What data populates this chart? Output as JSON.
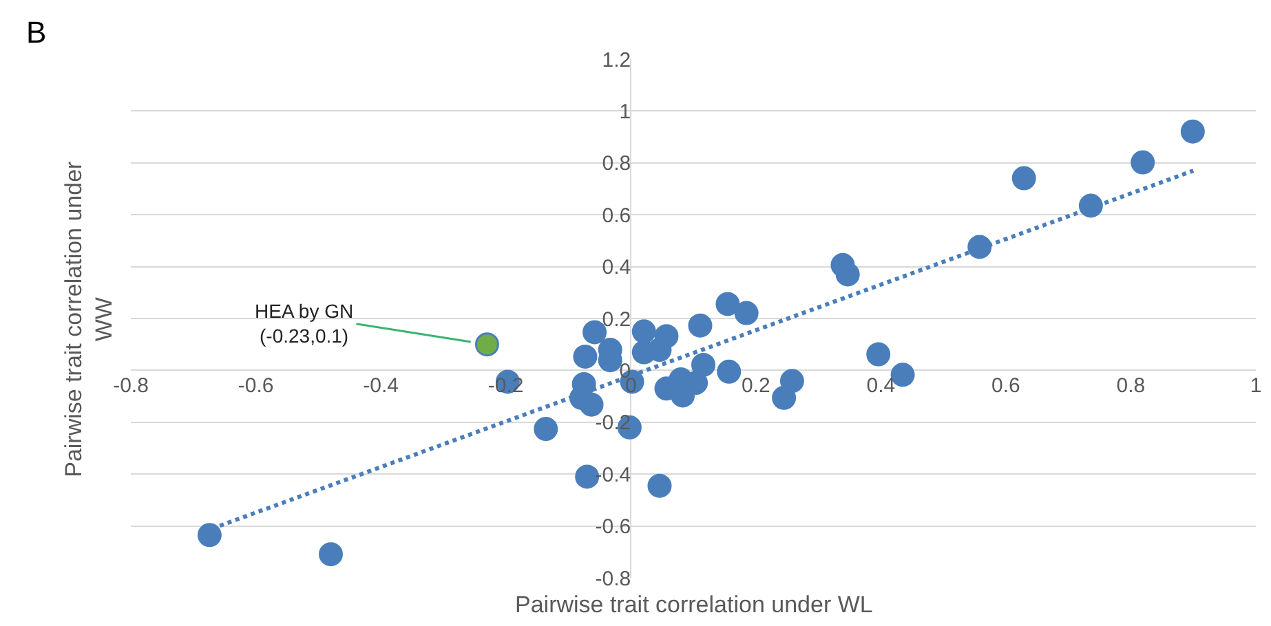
{
  "chart_data": {
    "type": "scatter",
    "xlabel": "Pairwise trait correlation under WL",
    "ylabel": "Pairwise trait correlation under WW",
    "xlim": [
      -0.8,
      1
    ],
    "ylim": [
      -0.8,
      1.2
    ],
    "xticks": [
      -0.8,
      -0.6,
      -0.4,
      -0.2,
      0,
      0.2,
      0.4,
      0.6,
      0.8,
      1
    ],
    "yticks": [
      -0.8,
      -0.6,
      -0.4,
      -0.2,
      0,
      0.2,
      0.4,
      0.6,
      0.8,
      1,
      1.2
    ],
    "grid": "y",
    "marker": "circle",
    "annotations": [
      "B",
      {
        "text": "HEA by GN\n(-0.23,0.1)",
        "x": -0.23,
        "y": 0.1
      }
    ],
    "series": [
      {
        "color": "#4a7ebb",
        "x": [
          -0.197,
          -0.058,
          -0.073,
          -0.033,
          -0.033,
          -0.075,
          -0.079,
          -0.063,
          -0.136,
          -0.002,
          -0.07,
          0.046,
          0.002,
          0.021,
          0.021,
          0.057,
          0.046,
          0.111,
          0.116,
          0.157,
          0.155,
          0.185,
          0.057,
          0.08,
          0.083,
          0.104,
          0.245,
          0.258,
          0.899,
          0.819,
          0.629,
          0.736,
          0.558,
          0.339,
          0.347,
          0.396,
          0.435,
          -0.674,
          -0.48
        ],
        "values": [
          -0.044,
          0.147,
          0.053,
          0.079,
          0.039,
          -0.053,
          -0.106,
          -0.132,
          -0.226,
          -0.22,
          -0.41,
          -0.445,
          -0.044,
          0.15,
          0.07,
          0.132,
          0.079,
          0.173,
          0.021,
          -0.005,
          0.256,
          0.221,
          -0.07,
          -0.035,
          -0.097,
          -0.048,
          -0.106,
          -0.041,
          0.921,
          0.802,
          0.741,
          0.635,
          0.476,
          0.406,
          0.37,
          0.062,
          -0.017,
          -0.635,
          -0.709
        ]
      },
      {
        "type": "scatter",
        "color": "#70ad47",
        "x": [
          -0.23
        ],
        "values": [
          0.1
        ]
      },
      {
        "type": "line",
        "color": "#4a7ebb",
        "line_style": "dotted",
        "marker": "none",
        "x": [
          -0.67,
          0.9
        ],
        "values": [
          -0.61,
          0.77
        ]
      }
    ]
  }
}
